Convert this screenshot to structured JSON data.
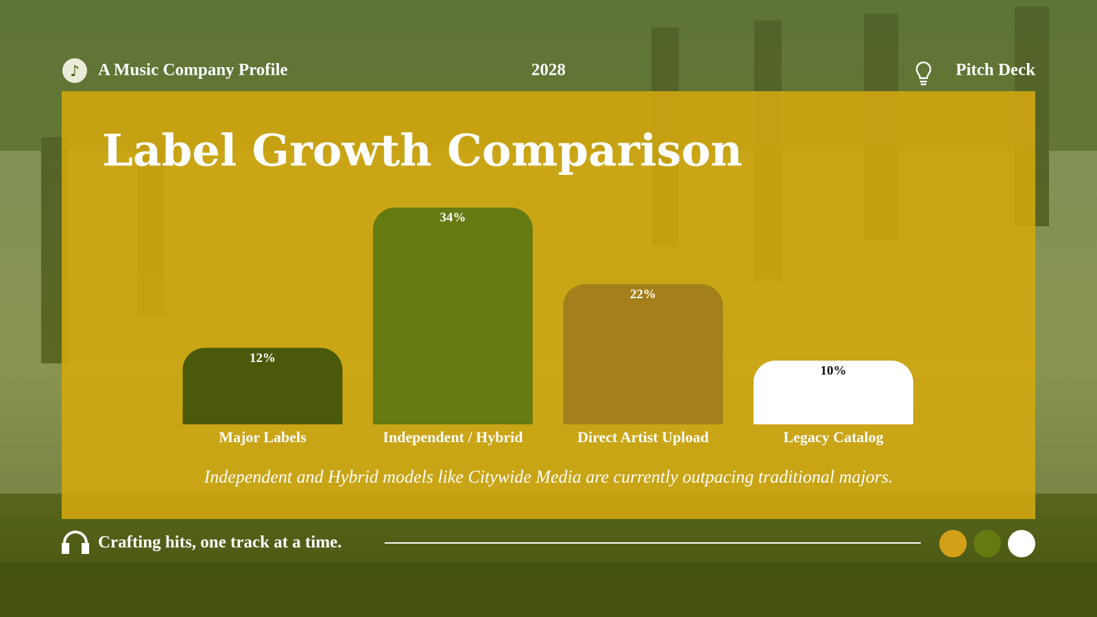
{
  "header": {
    "left": "A Music Company Profile",
    "center": "2028",
    "right": "Pitch Deck"
  },
  "chart_data": {
    "type": "bar",
    "title": "Label Growth Comparison",
    "categories": [
      "Major Labels",
      "Independent / Hybrid",
      "Direct Artist Upload",
      "Legacy Catalog"
    ],
    "values": [
      12,
      34,
      22,
      10
    ],
    "value_labels": [
      "12%",
      "34%",
      "22%",
      "10%"
    ],
    "colors": [
      "#4a5a0a",
      "#667a12",
      "#a4801c",
      "#ffffff"
    ],
    "caption": "Independent and Hybrid models like Citywide Media are currently outpacing traditional majors."
  },
  "footer": {
    "tagline": "Crafting hits, one track at a time."
  }
}
